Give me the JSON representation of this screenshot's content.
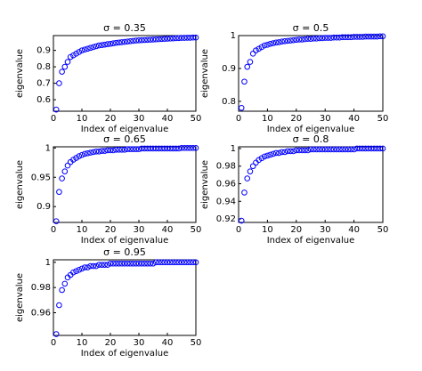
{
  "chart_data": [
    {
      "type": "scatter",
      "title": "σ = 0.35",
      "x_label": "Index of eigenvalue",
      "y_label": "eigenvalue",
      "color": "#0000ff",
      "x": [
        1,
        2,
        3,
        4,
        5,
        6,
        7,
        8,
        9,
        10,
        11,
        12,
        13,
        14,
        15,
        16,
        17,
        18,
        19,
        20,
        21,
        22,
        23,
        24,
        25,
        26,
        27,
        28,
        29,
        30,
        31,
        32,
        33,
        34,
        35,
        36,
        37,
        38,
        39,
        40,
        41,
        42,
        43,
        44,
        45,
        46,
        47,
        48,
        49,
        50
      ],
      "values": [
        0.54,
        0.7,
        0.77,
        0.8,
        0.83,
        0.86,
        0.87,
        0.88,
        0.89,
        0.9,
        0.905,
        0.91,
        0.915,
        0.92,
        0.925,
        0.93,
        0.932,
        0.935,
        0.938,
        0.94,
        0.943,
        0.946,
        0.948,
        0.95,
        0.952,
        0.954,
        0.956,
        0.958,
        0.96,
        0.961,
        0.962,
        0.963,
        0.964,
        0.965,
        0.966,
        0.967,
        0.968,
        0.969,
        0.97,
        0.971,
        0.972,
        0.973,
        0.974,
        0.975,
        0.976,
        0.976,
        0.977,
        0.977,
        0.978,
        0.978
      ],
      "xlim": [
        0,
        50
      ],
      "xticks": [
        0,
        10,
        20,
        30,
        40,
        50
      ],
      "ylim": [
        0.53,
        0.99
      ],
      "yticks": [
        0.6,
        0.7,
        0.8,
        0.9
      ]
    },
    {
      "type": "scatter",
      "title": "σ = 0.5",
      "x_label": "Index of eigenvalue",
      "y_label": "eigenvalue",
      "color": "#0000ff",
      "x": [
        1,
        2,
        3,
        4,
        5,
        6,
        7,
        8,
        9,
        10,
        11,
        12,
        13,
        14,
        15,
        16,
        17,
        18,
        19,
        20,
        21,
        22,
        23,
        24,
        25,
        26,
        27,
        28,
        29,
        30,
        31,
        32,
        33,
        34,
        35,
        36,
        37,
        38,
        39,
        40,
        41,
        42,
        43,
        44,
        45,
        46,
        47,
        48,
        49,
        50
      ],
      "values": [
        0.78,
        0.86,
        0.905,
        0.92,
        0.945,
        0.955,
        0.96,
        0.965,
        0.97,
        0.972,
        0.975,
        0.977,
        0.979,
        0.98,
        0.982,
        0.983,
        0.984,
        0.985,
        0.986,
        0.987,
        0.988,
        0.988,
        0.989,
        0.99,
        0.99,
        0.991,
        0.991,
        0.992,
        0.992,
        0.993,
        0.993,
        0.993,
        0.994,
        0.994,
        0.994,
        0.995,
        0.995,
        0.995,
        0.995,
        0.996,
        0.996,
        0.996,
        0.996,
        0.997,
        0.997,
        0.997,
        0.997,
        0.997,
        0.998,
        0.998
      ],
      "xlim": [
        0,
        50
      ],
      "xticks": [
        0,
        10,
        20,
        30,
        40,
        50
      ],
      "ylim": [
        0.77,
        1.0
      ],
      "yticks": [
        0.8,
        0.9,
        1
      ]
    },
    {
      "type": "scatter",
      "title": "σ = 0.65",
      "x_label": "Index of eigenvalue",
      "y_label": "eigenvalue",
      "color": "#0000ff",
      "x": [
        1,
        2,
        3,
        4,
        5,
        6,
        7,
        8,
        9,
        10,
        11,
        12,
        13,
        14,
        15,
        16,
        17,
        18,
        19,
        20,
        21,
        22,
        23,
        24,
        25,
        26,
        27,
        28,
        29,
        30,
        31,
        32,
        33,
        34,
        35,
        36,
        37,
        38,
        39,
        40,
        41,
        42,
        43,
        44,
        45,
        46,
        47,
        48,
        49,
        50
      ],
      "values": [
        0.875,
        0.925,
        0.948,
        0.96,
        0.97,
        0.976,
        0.98,
        0.983,
        0.986,
        0.988,
        0.99,
        0.991,
        0.992,
        0.993,
        0.994,
        0.994,
        0.995,
        0.995,
        0.996,
        0.996,
        0.996,
        0.997,
        0.997,
        0.997,
        0.997,
        0.998,
        0.998,
        0.998,
        0.998,
        0.998,
        0.999,
        0.999,
        0.999,
        0.999,
        0.999,
        0.999,
        0.999,
        0.999,
        0.999,
        0.999,
        0.999,
        0.999,
        0.999,
        0.999,
        1.0,
        1.0,
        1.0,
        1.0,
        1.0,
        1.0
      ],
      "xlim": [
        0,
        50
      ],
      "xticks": [
        0,
        10,
        20,
        30,
        40,
        50
      ],
      "ylim": [
        0.873,
        1.002
      ],
      "yticks": [
        0.9,
        0.95,
        1
      ]
    },
    {
      "type": "scatter",
      "title": "σ = 0.8",
      "x_label": "Index of eigenvalue",
      "y_label": "eigenvalue",
      "color": "#0000ff",
      "x": [
        1,
        2,
        3,
        4,
        5,
        6,
        7,
        8,
        9,
        10,
        11,
        12,
        13,
        14,
        15,
        16,
        17,
        18,
        19,
        20,
        21,
        22,
        23,
        24,
        25,
        26,
        27,
        28,
        29,
        30,
        31,
        32,
        33,
        34,
        35,
        36,
        37,
        38,
        39,
        40,
        41,
        42,
        43,
        44,
        45,
        46,
        47,
        48,
        49,
        50
      ],
      "values": [
        0.918,
        0.95,
        0.966,
        0.974,
        0.98,
        0.984,
        0.987,
        0.989,
        0.991,
        0.992,
        0.993,
        0.994,
        0.995,
        0.995,
        0.996,
        0.996,
        0.997,
        0.997,
        0.997,
        0.998,
        0.998,
        0.998,
        0.998,
        0.998,
        0.999,
        0.999,
        0.999,
        0.999,
        0.999,
        0.999,
        0.999,
        0.999,
        0.999,
        0.999,
        0.999,
        0.999,
        0.999,
        0.999,
        0.999,
        0.999,
        1.0,
        1.0,
        1.0,
        1.0,
        1.0,
        1.0,
        1.0,
        1.0,
        1.0,
        1.0
      ],
      "xlim": [
        0,
        50
      ],
      "xticks": [
        0,
        10,
        20,
        30,
        40,
        50
      ],
      "ylim": [
        0.916,
        1.002
      ],
      "yticks": [
        0.92,
        0.94,
        0.96,
        0.98,
        1
      ]
    },
    {
      "type": "scatter",
      "title": "σ = 0.95",
      "x_label": "Index of eigenvalue",
      "y_label": "eigenvalue",
      "color": "#0000ff",
      "x": [
        1,
        2,
        3,
        4,
        5,
        6,
        7,
        8,
        9,
        10,
        11,
        12,
        13,
        14,
        15,
        16,
        17,
        18,
        19,
        20,
        21,
        22,
        23,
        24,
        25,
        26,
        27,
        28,
        29,
        30,
        31,
        32,
        33,
        34,
        35,
        36,
        37,
        38,
        39,
        40,
        41,
        42,
        43,
        44,
        45,
        46,
        47,
        48,
        49,
        50
      ],
      "values": [
        0.943,
        0.966,
        0.978,
        0.983,
        0.988,
        0.99,
        0.992,
        0.993,
        0.994,
        0.995,
        0.996,
        0.996,
        0.997,
        0.997,
        0.997,
        0.998,
        0.998,
        0.998,
        0.998,
        0.999,
        0.999,
        0.999,
        0.999,
        0.999,
        0.999,
        0.999,
        0.999,
        0.999,
        0.999,
        0.999,
        0.999,
        0.999,
        0.999,
        0.999,
        0.999,
        1.0,
        1.0,
        1.0,
        1.0,
        1.0,
        1.0,
        1.0,
        1.0,
        1.0,
        1.0,
        1.0,
        1.0,
        1.0,
        1.0,
        1.0
      ],
      "xlim": [
        0,
        50
      ],
      "xticks": [
        0,
        10,
        20,
        30,
        40,
        50
      ],
      "ylim": [
        0.942,
        1.002
      ],
      "yticks": [
        0.96,
        0.98,
        1
      ]
    }
  ]
}
